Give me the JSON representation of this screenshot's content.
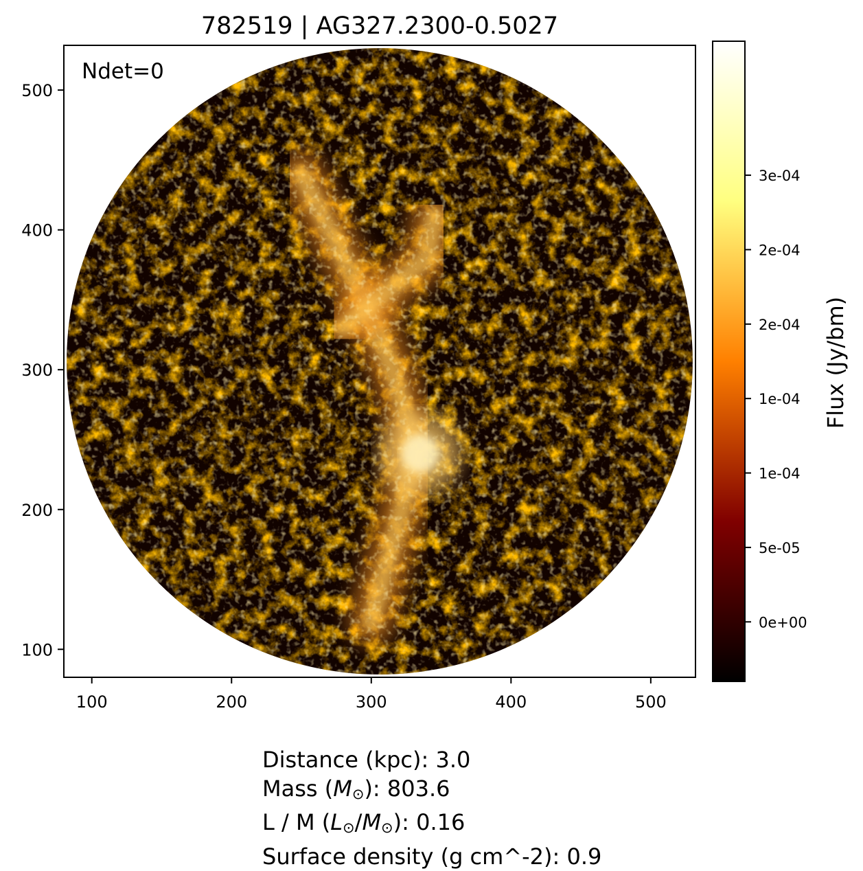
{
  "chart_data": {
    "type": "heatmap",
    "title": "782519 | AG327.2300-0.5027",
    "annotation": "Ndet=0",
    "xlim": [
      80,
      532
    ],
    "ylim": [
      80,
      532
    ],
    "x_ticks": [
      100,
      200,
      300,
      400,
      500
    ],
    "y_ticks": [
      100,
      200,
      300,
      400,
      500
    ],
    "x_tick_labels": [
      "100",
      "200",
      "300",
      "400",
      "500"
    ],
    "y_tick_labels": [
      "100",
      "200",
      "300",
      "400",
      "500"
    ],
    "map_mask": {
      "shape": "circle",
      "center": [
        306,
        306
      ],
      "radius": 224
    },
    "colorbar": {
      "label": "Flux (Jy/bm)",
      "colormap": "afmhot",
      "vmin": -4e-05,
      "vmax": 0.00039,
      "ticks": [
        0,
        5e-05,
        0.0001,
        0.00015,
        0.0002,
        0.00025,
        0.0003
      ],
      "tick_labels": [
        "0e+00",
        "5e-05",
        "1e-04",
        "1e-04",
        "2e-04",
        "2e-04",
        "3e-04"
      ]
    },
    "colors": {
      "black": "#000000",
      "dark_red": "#800000",
      "orange": "#ff8000",
      "yellow": "#ffff80",
      "white": "#ffffff"
    },
    "bright_emission_features": [
      {
        "description": "filament spine",
        "points": [
          [
            300,
            120
          ],
          [
            322,
            200
          ],
          [
            332,
            245
          ],
          [
            315,
            300
          ],
          [
            295,
            350
          ],
          [
            270,
            400
          ],
          [
            250,
            440
          ]
        ]
      },
      {
        "description": "bright core",
        "center": [
          335,
          240
        ],
        "level": "peak"
      },
      {
        "description": "branch",
        "points": [
          [
            280,
            330
          ],
          [
            340,
            380
          ],
          [
            345,
            410
          ]
        ]
      }
    ]
  },
  "stats": {
    "distance": "Distance (kpc): 3.0",
    "mass_prefix": "Mass (",
    "mass_symbol": "M",
    "mass_sub": "⊙",
    "mass_suffix": "): 803.6",
    "lm_prefix": "L / M (",
    "lm_l": "L",
    "lm_sub1": "⊙",
    "lm_slash": "/",
    "lm_m": "M",
    "lm_sub2": "⊙",
    "lm_suffix": "): 0.16",
    "surface_density": "Surface density (g cm^-2): 0.9"
  }
}
